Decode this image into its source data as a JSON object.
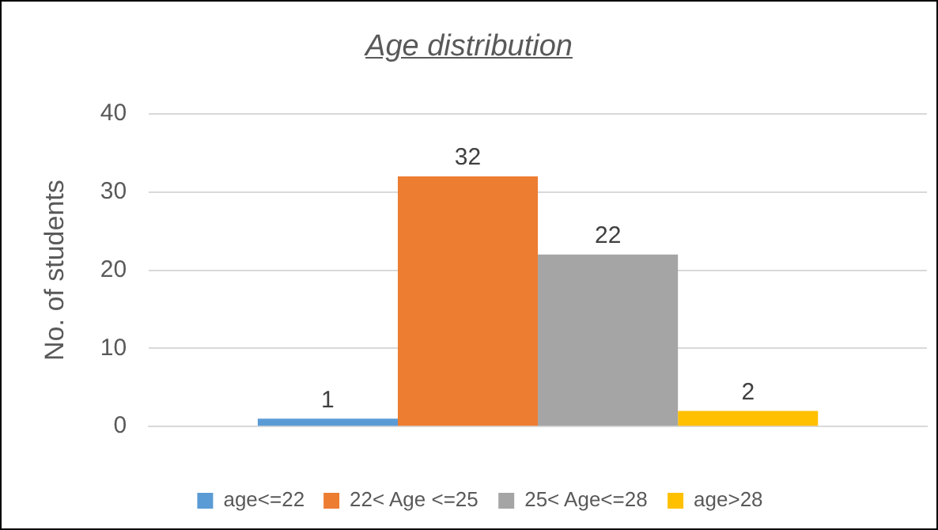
{
  "chart_data": {
    "type": "bar",
    "title": "Age distribution",
    "ylabel": "No. of students",
    "categories": [
      null
    ],
    "series": [
      {
        "name": "age<=22",
        "color": "#5b9bd5",
        "values": [
          1
        ]
      },
      {
        "name": "22< Age <=25",
        "color": "#ed7d31",
        "values": [
          32
        ]
      },
      {
        "name": "25< Age<=28",
        "color": "#a5a5a5",
        "values": [
          22
        ]
      },
      {
        "name": "age>28",
        "color": "#ffc000",
        "values": [
          2
        ]
      }
    ],
    "ylim": [
      0,
      40
    ],
    "yticks": [
      0,
      10,
      20,
      30,
      40
    ],
    "grid": "y",
    "legend": "bottom",
    "data_labels": true
  }
}
